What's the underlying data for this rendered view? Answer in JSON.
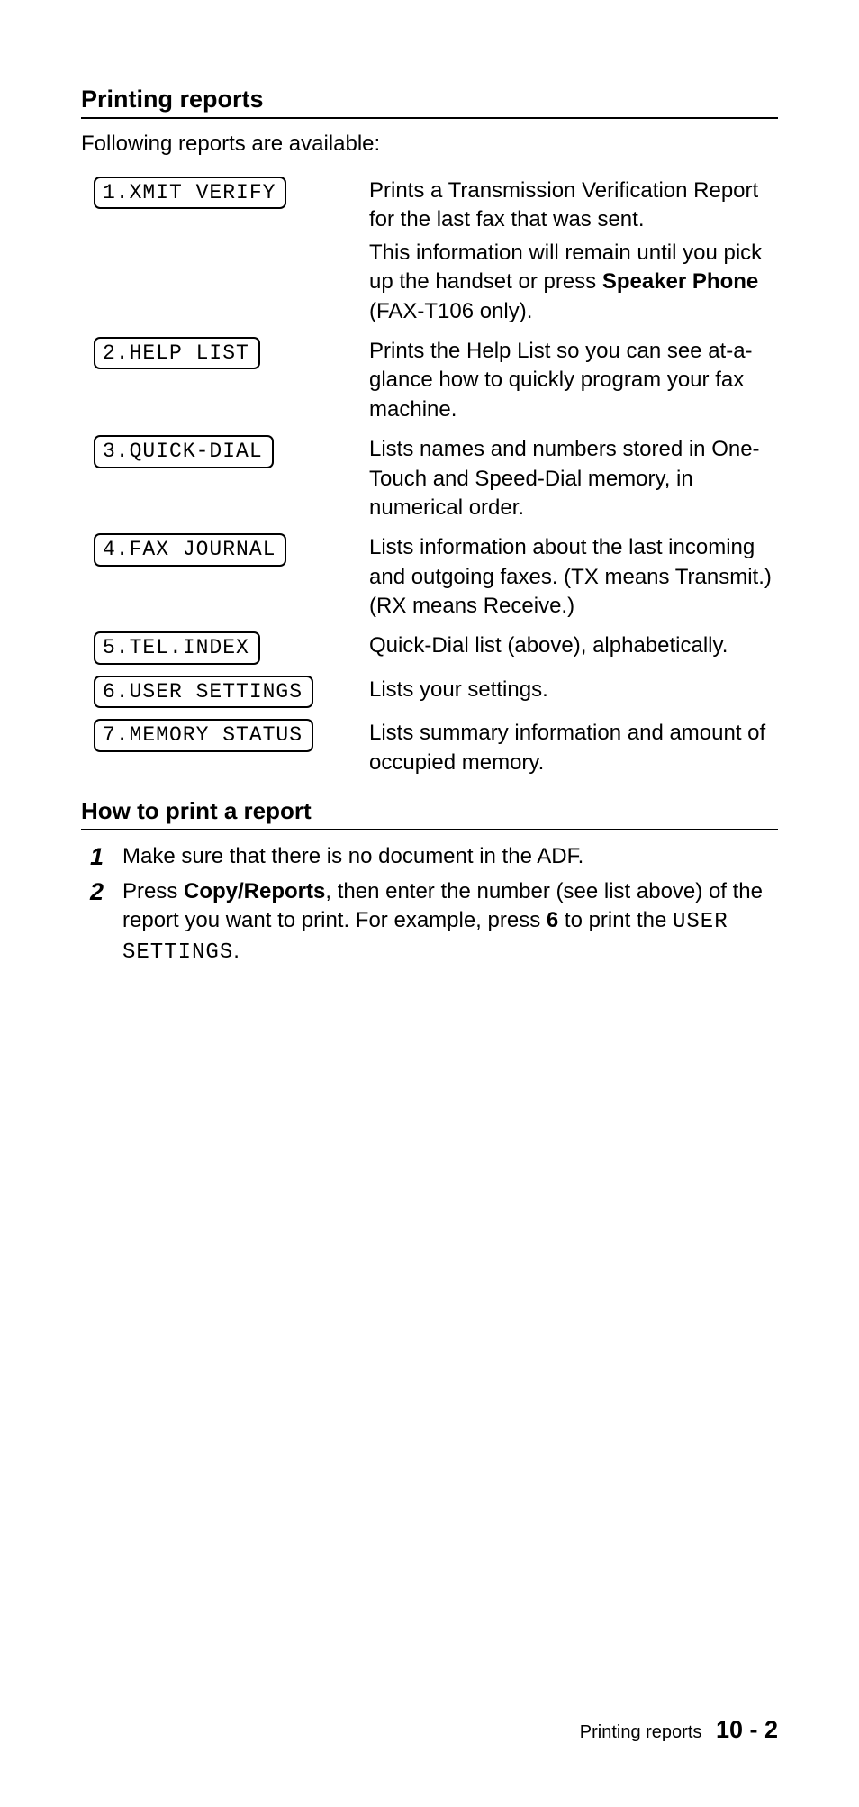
{
  "section1": {
    "heading": "Printing reports",
    "intro": "Following reports are available:"
  },
  "reports": [
    {
      "lcd": "1.XMIT VERIFY",
      "desc_parts": [
        {
          "t": "Prints a Transmission Verification Report for the last fax that was sent."
        },
        {
          "br": true
        },
        {
          "t": "This information will remain until you pick up the handset or press "
        },
        {
          "b": "Speaker Phone"
        },
        {
          "t": " (FAX-T106 only)."
        }
      ]
    },
    {
      "lcd": "2.HELP LIST",
      "desc_parts": [
        {
          "t": "Prints the Help List so you can see at-a-glance how to quickly program your fax machine."
        }
      ]
    },
    {
      "lcd": "3.QUICK-DIAL",
      "desc_parts": [
        {
          "t": "Lists names and numbers stored in One-Touch and Speed-Dial memory, in numerical order."
        }
      ]
    },
    {
      "lcd": "4.FAX JOURNAL",
      "desc_parts": [
        {
          "t": "Lists information about the last incoming and outgoing faxes. (TX means Transmit.) (RX means Receive.)"
        }
      ]
    },
    {
      "lcd": "5.TEL.INDEX",
      "desc_parts": [
        {
          "t": "Quick-Dial list (above), alphabetically."
        }
      ]
    },
    {
      "lcd": "6.USER SETTINGS",
      "desc_parts": [
        {
          "t": "Lists your settings."
        }
      ]
    },
    {
      "lcd": "7.MEMORY STATUS",
      "desc_parts": [
        {
          "t": "Lists summary information and amount of occupied memory."
        }
      ]
    }
  ],
  "section2": {
    "heading": "How to print a report"
  },
  "steps": [
    {
      "num": "1",
      "parts": [
        {
          "t": "Make sure that there is no document in the ADF."
        }
      ]
    },
    {
      "num": "2",
      "parts": [
        {
          "t": "Press "
        },
        {
          "b": "Copy/Reports"
        },
        {
          "t": ", then enter the number (see list above) of the report you want to print. For example, press "
        },
        {
          "b": "6"
        },
        {
          "t": " to print the "
        },
        {
          "m": "USER SETTINGS"
        },
        {
          "t": "."
        }
      ]
    }
  ],
  "footer": {
    "title": "Printing reports",
    "page": "10 - 2"
  }
}
